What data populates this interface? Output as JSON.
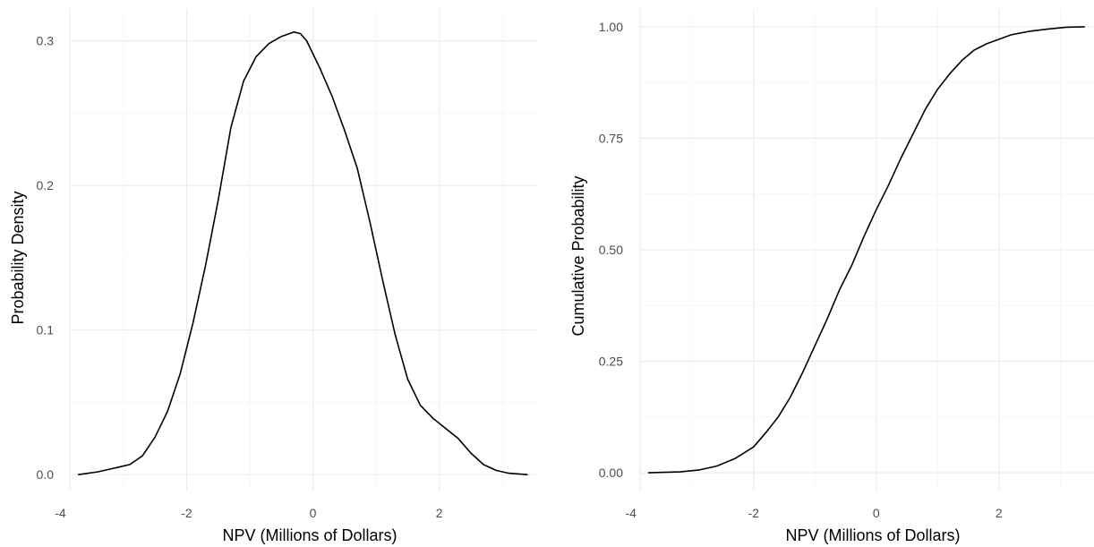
{
  "chart_data": [
    {
      "type": "line",
      "xlabel": "NPV (Millions of Dollars)",
      "ylabel": "Probability Density",
      "xlim": [
        -3.85,
        3.55
      ],
      "ylim": [
        -0.011,
        0.322
      ],
      "x_ticks": [
        -4,
        -2,
        0,
        2
      ],
      "x_tick_labels": [
        "-4",
        "-2",
        "0",
        "2"
      ],
      "y_ticks": [
        0,
        0.1,
        0.2,
        0.3
      ],
      "y_tick_labels": [
        "0.0",
        "0.1",
        "0.2",
        "0.3"
      ],
      "grid": true,
      "legend": "none",
      "series": [
        {
          "x": [
            -3.72,
            -3.4,
            -3.1,
            -2.9,
            -2.7,
            -2.5,
            -2.3,
            -2.1,
            -1.9,
            -1.7,
            -1.5,
            -1.3,
            -1.1,
            -0.9,
            -0.7,
            -0.5,
            -0.3,
            -0.2,
            -0.1,
            0.1,
            0.3,
            0.5,
            0.7,
            0.9,
            1.1,
            1.3,
            1.5,
            1.7,
            1.9,
            2.1,
            2.3,
            2.5,
            2.7,
            2.9,
            3.1,
            3.4
          ],
          "y": [
            0.0,
            0.002,
            0.005,
            0.007,
            0.013,
            0.026,
            0.044,
            0.07,
            0.105,
            0.145,
            0.19,
            0.24,
            0.272,
            0.289,
            0.298,
            0.303,
            0.306,
            0.305,
            0.3,
            0.282,
            0.262,
            0.238,
            0.212,
            0.175,
            0.135,
            0.097,
            0.066,
            0.048,
            0.039,
            0.032,
            0.025,
            0.015,
            0.007,
            0.003,
            0.001,
            0.0
          ]
        }
      ]
    },
    {
      "type": "line",
      "xlabel": "NPV (Millions of Dollars)",
      "ylabel": "Cumulative Probability",
      "xlim": [
        -3.85,
        3.55
      ],
      "ylim": [
        -0.04,
        1.04
      ],
      "x_ticks": [
        -4,
        -2,
        0,
        2
      ],
      "x_tick_labels": [
        "-4",
        "-2",
        "0",
        "2"
      ],
      "y_ticks": [
        0,
        0.25,
        0.5,
        0.75,
        1.0
      ],
      "y_tick_labels": [
        "0.00",
        "0.25",
        "0.50",
        "0.75",
        "1.00"
      ],
      "grid": true,
      "legend": "none",
      "series": [
        {
          "x": [
            -3.72,
            -3.2,
            -2.9,
            -2.6,
            -2.3,
            -2.0,
            -1.8,
            -1.6,
            -1.4,
            -1.2,
            -1.0,
            -0.8,
            -0.6,
            -0.4,
            -0.2,
            0.0,
            0.2,
            0.4,
            0.6,
            0.8,
            1.0,
            1.2,
            1.4,
            1.6,
            1.8,
            2.0,
            2.2,
            2.5,
            2.8,
            3.1,
            3.4
          ],
          "y": [
            0.0,
            0.002,
            0.006,
            0.015,
            0.032,
            0.058,
            0.09,
            0.125,
            0.17,
            0.225,
            0.285,
            0.345,
            0.41,
            0.465,
            0.53,
            0.59,
            0.645,
            0.705,
            0.76,
            0.815,
            0.86,
            0.895,
            0.925,
            0.948,
            0.962,
            0.972,
            0.982,
            0.99,
            0.995,
            0.999,
            1.0
          ]
        }
      ]
    }
  ]
}
